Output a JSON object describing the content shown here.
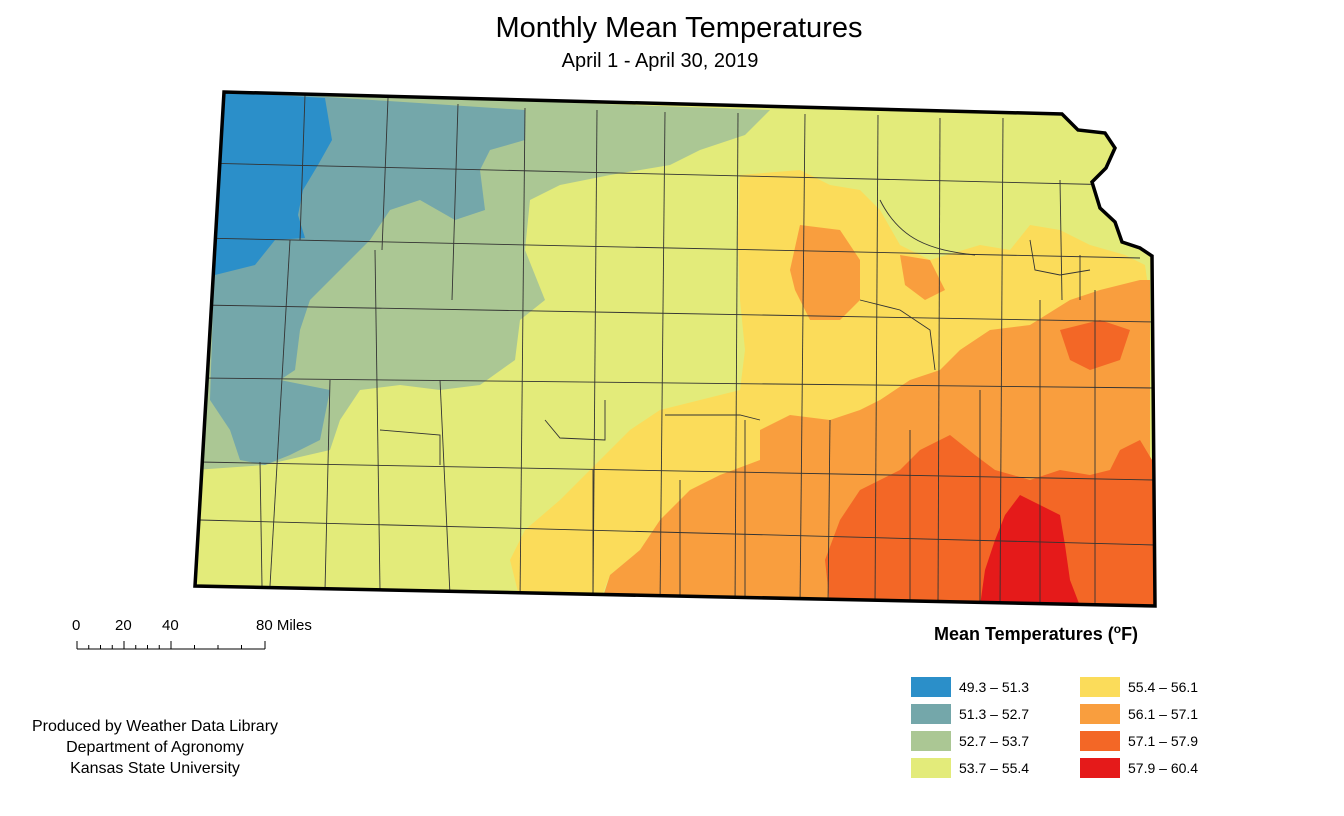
{
  "title": "Monthly Mean Temperatures",
  "subtitle": "April 1 - April 30, 2019",
  "scale_bar": {
    "ticks": [
      "0",
      "20",
      "40",
      "80 Miles"
    ]
  },
  "credits": [
    "Produced by Weather Data Library",
    "Department of Agronomy",
    "Kansas State University"
  ],
  "legend": {
    "title": "Mean Temperatures (",
    "unit_sup": "o",
    "unit_tail": "F)",
    "items": [
      {
        "label": "49.3 – 51.3",
        "color": "#2b8fc9"
      },
      {
        "label": "51.3 – 52.7",
        "color": "#74a7aa"
      },
      {
        "label": "52.7 – 53.7",
        "color": "#abc794"
      },
      {
        "label": "53.7 – 55.4",
        "color": "#e3eb7a"
      },
      {
        "label": "55.4 – 56.1",
        "color": "#fbdc5a"
      },
      {
        "label": "56.1 – 57.1",
        "color": "#f99e3e"
      },
      {
        "label": "57.1 – 57.9",
        "color": "#f36726"
      },
      {
        "label": "57.9 – 60.4",
        "color": "#e51a1a"
      }
    ]
  }
}
